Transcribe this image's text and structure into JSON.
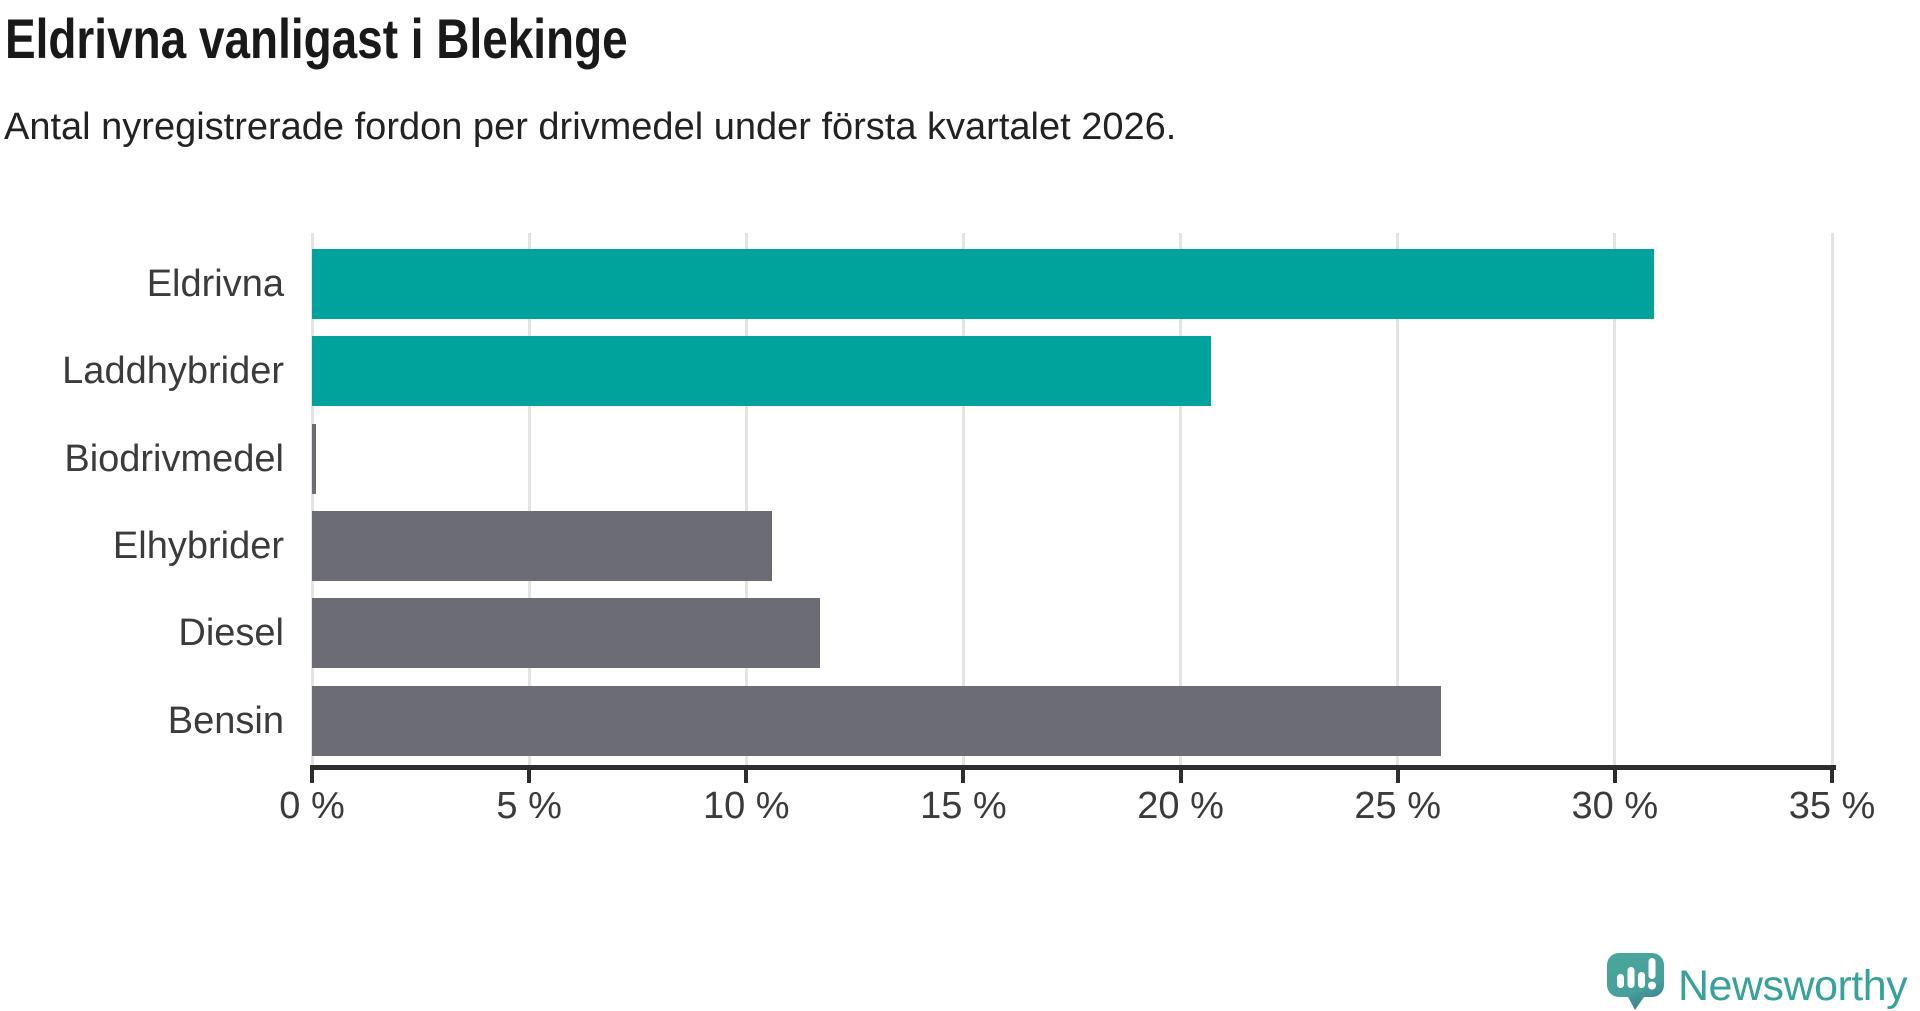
{
  "header": {
    "title": "Eldrivna vanligast i Blekinge",
    "subtitle": "Antal nyregistrerade fordon per drivmedel under första kvartalet 2026."
  },
  "chart_data": {
    "type": "bar",
    "orientation": "horizontal",
    "title": "Eldrivna vanligast i Blekinge",
    "subtitle": "Antal nyregistrerade fordon per drivmedel under första kvartalet 2026.",
    "categories": [
      "Eldrivna",
      "Laddhybrider",
      "Biodrivmedel",
      "Elhybrider",
      "Diesel",
      "Bensin"
    ],
    "values": [
      30.9,
      20.7,
      0.1,
      10.6,
      11.7,
      26.0
    ],
    "unit": "%",
    "bar_colors": [
      "#00a39c",
      "#00a39c",
      "#6c6c74",
      "#6c6c74",
      "#6c6c74",
      "#6c6c74"
    ],
    "highlight_color": "#00a39c",
    "default_color": "#6c6c74",
    "xlabel": "",
    "ylabel": "",
    "xlim": [
      0,
      35
    ],
    "x_ticks": [
      0,
      5,
      10,
      15,
      20,
      25,
      30,
      35
    ],
    "x_tick_labels": [
      "0 %",
      "5 %",
      "10 %",
      "15 %",
      "20 %",
      "25 %",
      "30 %",
      "35 %"
    ],
    "grid": "vertical-gridlines-on",
    "legend": "none"
  },
  "branding": {
    "logo_text": "Newsworthy",
    "logo_color": "#36a29a",
    "logo_icon": "newsworthy-badge-bar-chart-icon"
  }
}
